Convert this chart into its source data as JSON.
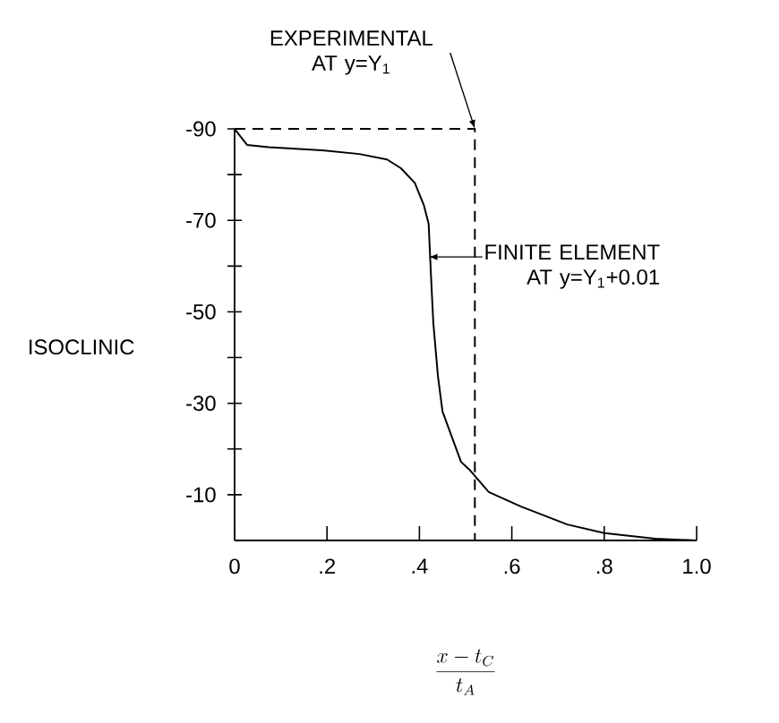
{
  "chart_data": {
    "type": "line",
    "xlabel": "\\frac{x-t_{C}}{t_{A}}",
    "ylabel": "ISOCLINIC",
    "xlim": [
      0,
      1
    ],
    "ylim": [
      0,
      -90
    ],
    "xticks": [
      0,
      {
        "value": 0.2,
        "label": ".2"
      },
      {
        "value": 0.4,
        "label": ".4"
      },
      {
        "value": 0.6,
        "label": ".6"
      },
      {
        "value": 0.8,
        "label": ".8"
      },
      {
        "value": 1,
        "label": "1.0"
      }
    ],
    "yticks": [
      -90,
      {
        "value": -80,
        "label": null
      },
      -70,
      {
        "value": -60,
        "label": null
      },
      -50,
      {
        "value": -40,
        "label": null
      },
      -30,
      {
        "value": -20,
        "label": null
      },
      -10
    ],
    "grid": false,
    "series": [
      {
        "color": "#000000",
        "line_style": "dashed",
        "x": [
          0,
          0.52,
          0.52
        ],
        "values": [
          -90,
          -90,
          0
        ]
      },
      {
        "color": "#000000",
        "line_style": "solid",
        "x": [
          0,
          0.027,
          0.074,
          0.19,
          0.27,
          0.33,
          0.36,
          0.39,
          0.41,
          0.42,
          0.425,
          0.43,
          0.44,
          0.45,
          0.49,
          0.51,
          0.55,
          0.62,
          0.72,
          0.8,
          0.91,
          1.0
        ],
        "values": [
          -90,
          -86.5,
          -86,
          -85.3,
          -84.5,
          -83.3,
          -81.4,
          -78.2,
          -73.2,
          -69.2,
          -58,
          -47.7,
          -36,
          -28.2,
          -17.2,
          -15.3,
          -10.6,
          -7.4,
          -3.5,
          -1.6,
          -0.4,
          0
        ]
      }
    ],
    "annotations": [
      {
        "text": "EXPERIMENTAL AT y=Y$_{1}$",
        "x": 0.52,
        "y": -90
      },
      {
        "text": "FINITE ELEMENT AT y=Y$_{1}$+0.01",
        "x": 0.42,
        "y": -62
      }
    ]
  }
}
